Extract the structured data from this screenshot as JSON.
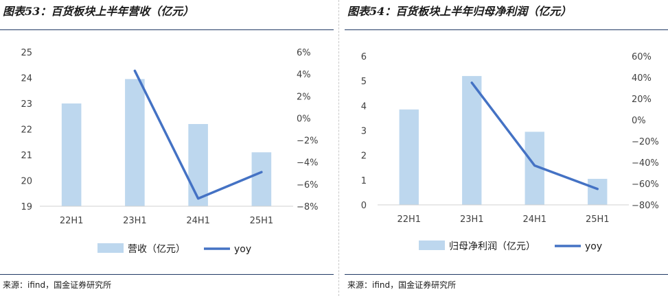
{
  "charts": [
    {
      "title": "图表53：百货板块上半年营收（亿元）",
      "source": "来源：ifind，国金证券研究所"
    },
    {
      "title": "图表54：百货板块上半年归母净利润（亿元）",
      "source": "来源：ifind，国金证券研究所"
    }
  ],
  "colors": {
    "bar": "#bdd7ee",
    "line": "#4472c4",
    "rule": "#1f3864"
  },
  "chart_data": [
    {
      "type": "bar",
      "categories": [
        "22H1",
        "23H1",
        "24H1",
        "25H1"
      ],
      "series": [
        {
          "name": "营收（亿元）",
          "type": "bar",
          "axis": "left",
          "values": [
            23.0,
            23.95,
            22.2,
            21.1
          ]
        },
        {
          "name": "yoy",
          "type": "line",
          "axis": "right",
          "values": [
            null,
            4.3,
            -7.3,
            -4.9
          ]
        }
      ],
      "yleft": {
        "ticks": [
          "25",
          "24",
          "23",
          "22",
          "21",
          "20",
          "19"
        ],
        "ylim": [
          19,
          25
        ]
      },
      "yright": {
        "ticks": [
          "6%",
          "4%",
          "2%",
          "0%",
          "−2%",
          "−4%",
          "−6%",
          "−8%"
        ],
        "ylim": [
          -8,
          6
        ]
      },
      "legend": "bottom"
    },
    {
      "type": "bar",
      "categories": [
        "22H1",
        "23H1",
        "24H1",
        "25H1"
      ],
      "series": [
        {
          "name": "归母净利润（亿元）",
          "type": "bar",
          "axis": "left",
          "values": [
            3.85,
            5.2,
            2.95,
            1.05
          ]
        },
        {
          "name": "yoy",
          "type": "line",
          "axis": "right",
          "values": [
            null,
            35,
            -43,
            -65
          ]
        }
      ],
      "yleft": {
        "ticks": [
          "6",
          "5",
          "4",
          "3",
          "2",
          "1",
          "0"
        ],
        "ylim": [
          0,
          6
        ]
      },
      "yright": {
        "ticks": [
          "60%",
          "40%",
          "20%",
          "0%",
          "−20%",
          "−40%",
          "−60%",
          "−80%"
        ],
        "ylim": [
          -80,
          60
        ]
      },
      "legend": "bottom"
    }
  ]
}
